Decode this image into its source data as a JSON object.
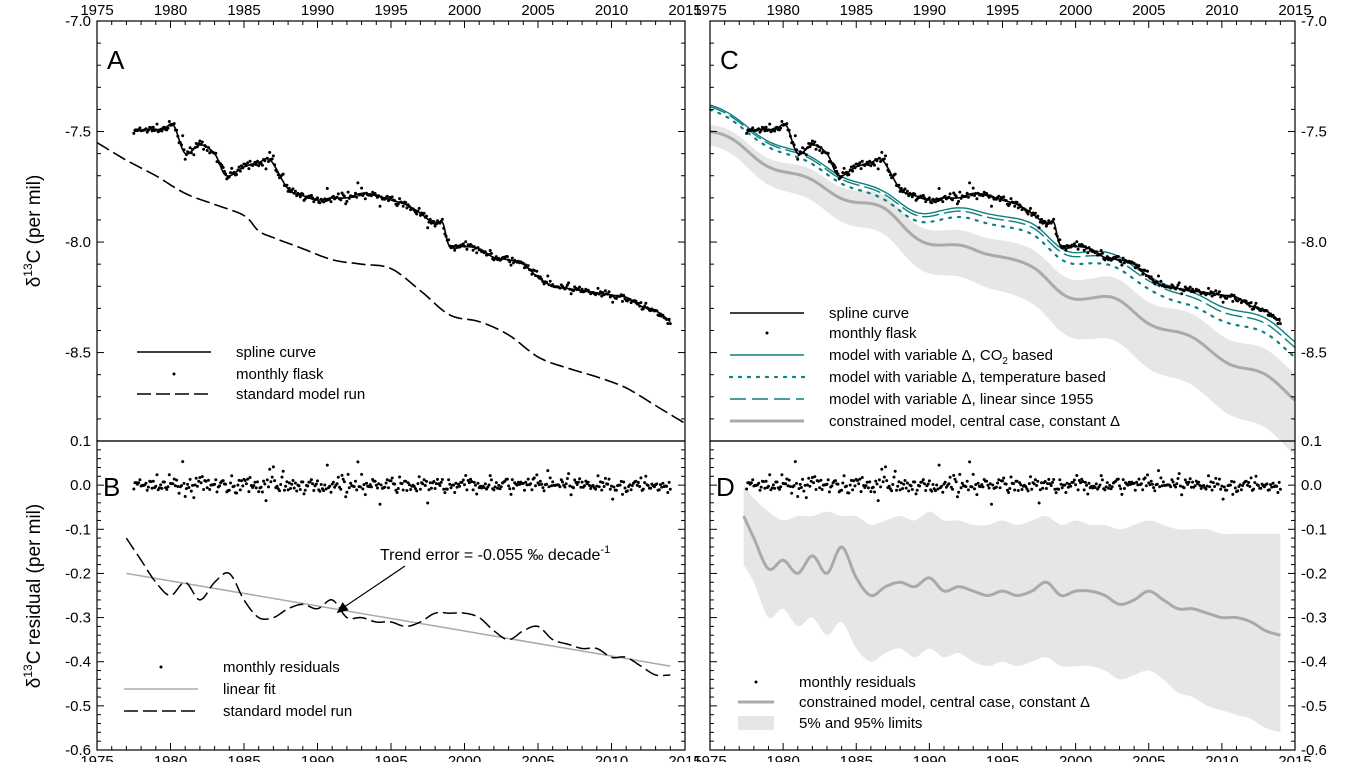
{
  "figure": {
    "ylabel_top": {
      "main": "δ",
      "sup": "13",
      "rest": "C (per mil)"
    },
    "ylabel_bottom": {
      "main": "δ",
      "sup": "13",
      "rest": "C residual (per mil)"
    }
  },
  "chart_data": [
    {
      "panel": "A",
      "type": "line",
      "xlim": [
        1975,
        2015
      ],
      "ylim": [
        -8.9,
        -7.0
      ],
      "x_ticks": [
        1975,
        1980,
        1985,
        1990,
        1995,
        2000,
        2005,
        2010,
        2015
      ],
      "y_ticks": [
        "-7.0",
        "-7.5",
        "-8.0",
        "-8.5"
      ],
      "legend": [
        "spline curve",
        "monthly flask",
        "standard model run"
      ],
      "series": [
        {
          "name": "spline curve",
          "style": "solid",
          "x": [
            1977.5,
            1978.5,
            1979.5,
            1980.2,
            1981,
            1982,
            1983,
            1983.8,
            1985,
            1986,
            1986.8,
            1988,
            1989,
            1990,
            1991,
            1992,
            1993,
            1994,
            1995,
            1996,
            1997,
            1998,
            1998.5,
            1999,
            2000,
            2001,
            2002,
            2003,
            2004,
            2005,
            2006,
            2007,
            2008,
            2009,
            2010,
            2011,
            2012,
            2013,
            2014
          ],
          "y": [
            -7.5,
            -7.49,
            -7.49,
            -7.47,
            -7.6,
            -7.56,
            -7.6,
            -7.7,
            -7.66,
            -7.64,
            -7.63,
            -7.76,
            -7.79,
            -7.81,
            -7.8,
            -7.8,
            -7.78,
            -7.79,
            -7.81,
            -7.83,
            -7.87,
            -7.92,
            -7.91,
            -8.02,
            -8.02,
            -8.03,
            -8.07,
            -8.08,
            -8.1,
            -8.16,
            -8.2,
            -8.21,
            -8.22,
            -8.23,
            -8.24,
            -8.25,
            -8.29,
            -8.31,
            -8.36
          ]
        },
        {
          "name": "standard model run",
          "style": "dashed",
          "x": [
            1975,
            1977,
            1979,
            1981,
            1983,
            1985,
            1986,
            1987,
            1989,
            1991,
            1993,
            1995,
            1997,
            1999,
            2001,
            2003,
            2005,
            2007,
            2009,
            2011,
            2013,
            2015
          ],
          "y": [
            -7.55,
            -7.63,
            -7.7,
            -7.78,
            -7.83,
            -7.88,
            -7.95,
            -7.98,
            -8.03,
            -8.08,
            -8.1,
            -8.12,
            -8.22,
            -8.33,
            -8.36,
            -8.42,
            -8.52,
            -8.57,
            -8.61,
            -8.66,
            -8.74,
            -8.82
          ]
        }
      ]
    },
    {
      "panel": "B",
      "type": "line",
      "xlim": [
        1975,
        2015
      ],
      "ylim": [
        -0.6,
        0.1
      ],
      "x_ticks": [
        1975,
        1980,
        1985,
        1990,
        1995,
        2000,
        2005,
        2010,
        2015
      ],
      "y_ticks": [
        "0.1",
        "0.0",
        "-0.1",
        "-0.2",
        "-0.3",
        "-0.4",
        "-0.5",
        "-0.6"
      ],
      "annotation": {
        "text": "Trend error = -0.055 ‰ decade",
        "sup": "-1",
        "arrow_to": [
          1991.3,
          -0.29
        ]
      },
      "legend": [
        "monthly residuals",
        "linear fit",
        "standard model run"
      ],
      "series": [
        {
          "name": "linear fit",
          "style": "solid-gray",
          "x": [
            1977,
            2014
          ],
          "y": [
            -0.2,
            -0.41
          ]
        },
        {
          "name": "standard model run",
          "style": "dashed",
          "x": [
            1977,
            1978,
            1979,
            1980,
            1981,
            1982,
            1983,
            1984,
            1985,
            1986,
            1987,
            1988,
            1989,
            1990,
            1991,
            1992,
            1993,
            1994,
            1995,
            1996,
            1997,
            1998,
            1999,
            2000,
            2001,
            2002,
            2003,
            2004,
            2005,
            2006,
            2007,
            2008,
            2009,
            2010,
            2011,
            2012,
            2013,
            2014
          ],
          "y": [
            -0.12,
            -0.17,
            -0.22,
            -0.25,
            -0.22,
            -0.26,
            -0.22,
            -0.2,
            -0.26,
            -0.3,
            -0.3,
            -0.28,
            -0.27,
            -0.28,
            -0.26,
            -0.3,
            -0.3,
            -0.31,
            -0.31,
            -0.32,
            -0.31,
            -0.29,
            -0.29,
            -0.29,
            -0.3,
            -0.33,
            -0.35,
            -0.33,
            -0.32,
            -0.35,
            -0.36,
            -0.37,
            -0.37,
            -0.39,
            -0.39,
            -0.41,
            -0.43,
            -0.43
          ]
        },
        {
          "name": "monthly residuals",
          "style": "points",
          "note": "monthly points scattered around 0.0, mostly within ±0.05"
        }
      ]
    },
    {
      "panel": "C",
      "type": "line",
      "xlim": [
        1975,
        2015
      ],
      "ylim": [
        -8.9,
        -7.0
      ],
      "x_ticks": [
        1975,
        1980,
        1985,
        1990,
        1995,
        2000,
        2005,
        2010,
        2015
      ],
      "y_ticks": [
        "-7.0",
        "-7.5",
        "-8.0",
        "-8.5"
      ],
      "legend": [
        "spline curve",
        "monthly flask",
        "model with variable Δ, CO₂ based",
        "model with variable Δ, temperature based",
        "model with variable Δ, linear since 1955",
        "constrained model, central case, constant Δ"
      ],
      "series": [
        {
          "name": "model with variable Δ, CO₂ based",
          "style": "teal-solid",
          "offset": -0.06
        },
        {
          "name": "model with variable Δ, temperature based",
          "style": "teal-dotted",
          "offset": -0.13
        },
        {
          "name": "model with variable Δ, linear since 1955",
          "style": "teal-dashed",
          "offset": -0.08
        },
        {
          "name": "constrained model, central case, constant Δ",
          "style": "gray-thick",
          "x": [
            1975,
            1977,
            1979,
            1981,
            1983,
            1985,
            1987,
            1989,
            1991,
            1993,
            1995,
            1997,
            1999,
            2001,
            2003,
            2005,
            2007,
            2009,
            2011,
            2013,
            2015
          ],
          "y": [
            -7.5,
            -7.57,
            -7.64,
            -7.71,
            -7.76,
            -7.81,
            -7.87,
            -7.96,
            -8.02,
            -8.04,
            -8.05,
            -8.13,
            -8.22,
            -8.25,
            -8.28,
            -8.35,
            -8.42,
            -8.48,
            -8.55,
            -8.62,
            -8.7
          ]
        },
        {
          "name": "constrained model, 5% and 95% limits",
          "style": "band",
          "half_width_start": 0.05,
          "half_width_end": 0.2
        }
      ]
    },
    {
      "panel": "D",
      "type": "line",
      "xlim": [
        1975,
        2015
      ],
      "ylim": [
        -0.6,
        0.1
      ],
      "x_ticks": [
        1975,
        1980,
        1985,
        1990,
        1995,
        2000,
        2005,
        2010,
        2015
      ],
      "y_ticks": [
        "0.1",
        "0.0",
        "-0.1",
        "-0.2",
        "-0.3",
        "-0.4",
        "-0.5",
        "-0.6"
      ],
      "legend": [
        "monthly residuals",
        "constrained model, central case, constant Δ",
        "5% and 95% limits"
      ],
      "series": [
        {
          "name": "constrained model, central case, constant Δ",
          "style": "gray-thick",
          "x": [
            1977.3,
            1978,
            1979,
            1980,
            1981,
            1982,
            1983,
            1984,
            1985,
            1986,
            1987,
            1988,
            1989,
            1990,
            1991,
            1992,
            1993,
            1994,
            1995,
            1996,
            1997,
            1998,
            1999,
            2000,
            2001,
            2002,
            2003,
            2004,
            2005,
            2006,
            2007,
            2008,
            2009,
            2010,
            2011,
            2012,
            2013,
            2014
          ],
          "y": [
            -0.07,
            -0.12,
            -0.19,
            -0.17,
            -0.2,
            -0.16,
            -0.2,
            -0.14,
            -0.21,
            -0.25,
            -0.23,
            -0.22,
            -0.23,
            -0.21,
            -0.24,
            -0.23,
            -0.24,
            -0.25,
            -0.24,
            -0.25,
            -0.24,
            -0.22,
            -0.25,
            -0.24,
            -0.24,
            -0.25,
            -0.27,
            -0.26,
            -0.24,
            -0.26,
            -0.28,
            -0.28,
            -0.29,
            -0.3,
            -0.3,
            -0.31,
            -0.33,
            -0.34
          ]
        },
        {
          "name": "5% and 95% limits",
          "style": "band",
          "x": [
            1977.3,
            1978,
            1979,
            1980,
            1981,
            1982,
            1983,
            1984,
            1985,
            1986,
            1987,
            1988,
            1989,
            1990,
            1991,
            1992,
            1993,
            1994,
            1995,
            1996,
            1997,
            1998,
            1999,
            2000,
            2001,
            2002,
            2003,
            2004,
            2005,
            2006,
            2007,
            2008,
            2009,
            2010,
            2011,
            2012,
            2013,
            2014
          ],
          "upper": [
            0.0,
            -0.03,
            -0.06,
            -0.08,
            -0.07,
            -0.07,
            -0.06,
            -0.07,
            -0.07,
            -0.09,
            -0.08,
            -0.07,
            -0.08,
            -0.06,
            -0.08,
            -0.08,
            -0.09,
            -0.09,
            -0.08,
            -0.09,
            -0.08,
            -0.07,
            -0.09,
            -0.08,
            -0.09,
            -0.09,
            -0.1,
            -0.09,
            -0.08,
            -0.09,
            -0.1,
            -0.1,
            -0.1,
            -0.11,
            -0.11,
            -0.11,
            -0.11,
            -0.11
          ],
          "lower": [
            -0.18,
            -0.22,
            -0.3,
            -0.28,
            -0.32,
            -0.3,
            -0.34,
            -0.31,
            -0.37,
            -0.4,
            -0.38,
            -0.37,
            -0.39,
            -0.37,
            -0.39,
            -0.38,
            -0.4,
            -0.41,
            -0.4,
            -0.41,
            -0.4,
            -0.39,
            -0.41,
            -0.41,
            -0.41,
            -0.42,
            -0.44,
            -0.43,
            -0.42,
            -0.44,
            -0.47,
            -0.48,
            -0.5,
            -0.51,
            -0.52,
            -0.53,
            -0.55,
            -0.56
          ]
        },
        {
          "name": "monthly residuals",
          "style": "points",
          "note": "same monthly residual points as panel B"
        }
      ]
    }
  ],
  "styles": {
    "black": "#000000",
    "teal": "#0f7f80",
    "gray": "#aaaaaa",
    "band": "#e6e6e6"
  }
}
